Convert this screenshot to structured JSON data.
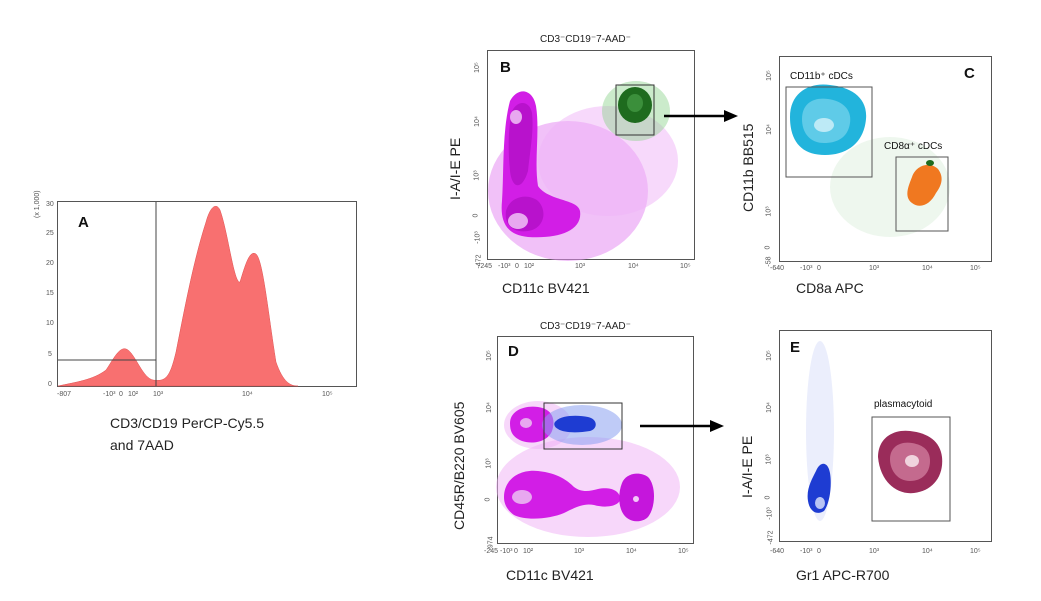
{
  "colors": {
    "histogram": "#f87070",
    "magenta": "#d21ee6",
    "dark_magenta": "#8a0aa0",
    "green": "#1e6b1e",
    "cyan": "#22b4dc",
    "orange": "#f07820",
    "blue": "#1e3cd2",
    "plum": "#9a2c5a"
  },
  "panels": [
    {
      "id": "A",
      "label": "A",
      "x_label_line1": "CD3/CD19 PerCP-Cy5.5",
      "x_label_line2": "and 7AAD",
      "y_scale": "(x 1,000)",
      "x_ticks": [
        "-807",
        "-10³",
        "0",
        "10²",
        "10³",
        "10⁴",
        "10⁵"
      ],
      "y_ticks": [
        "0",
        "5",
        "10",
        "15",
        "20",
        "25",
        "30"
      ]
    },
    {
      "id": "B",
      "label": "B",
      "title": "CD3⁻CD19⁻7-AAD⁻",
      "x_label": "CD11c BV421",
      "y_label": "I-A/I-E PE",
      "x_ticks": [
        "-245",
        "-10³",
        "0",
        "10²",
        "10³",
        "10⁴",
        "10⁵"
      ],
      "y_ticks": [
        "-472",
        "-10³",
        "0",
        "10³",
        "10⁴",
        "10⁵"
      ]
    },
    {
      "id": "C",
      "label": "C",
      "x_label": "CD8a APC",
      "y_label": "CD11b BB515",
      "x_ticks": [
        "-640",
        "-10³",
        "0",
        "10³",
        "10⁴",
        "10⁵"
      ],
      "y_ticks": [
        "-58",
        "0",
        "10³",
        "10⁴",
        "10⁵"
      ],
      "gate_1": "CD11b⁺ cDCs",
      "gate_2": "CD8α⁺ cDCs"
    },
    {
      "id": "D",
      "label": "D",
      "title": "CD3⁻CD19⁻7-AAD⁻",
      "x_label": "CD11c BV421",
      "y_label": "CD45R/B220 BV605",
      "x_ticks": [
        "-245",
        "-10³",
        "0",
        "10²",
        "10³",
        "10⁴",
        "10⁵"
      ],
      "y_ticks": [
        "-974",
        "0",
        "10³",
        "10⁴",
        "10⁵"
      ]
    },
    {
      "id": "E",
      "label": "E",
      "x_label": "Gr1 APC-R700",
      "y_label": "I-A/I-E PE",
      "x_ticks": [
        "-640",
        "-10³",
        "0",
        "10³",
        "10⁴",
        "10⁵"
      ],
      "y_ticks": [
        "-472",
        "-10³",
        "0",
        "10³",
        "10⁴",
        "10⁵"
      ],
      "gate_1": "plasmacytoid"
    }
  ],
  "chart_data": [
    {
      "type": "area",
      "panel": "A",
      "xlabel": "CD3/CD19 PerCP-Cy5.5 and 7AAD",
      "ylabel": "(x 1,000)",
      "xscale": "biexponential",
      "x": [
        -807,
        0,
        100,
        300,
        600,
        1000,
        1500,
        2000,
        2500,
        3500,
        5000,
        7000,
        9000,
        12000
      ],
      "y": [
        0,
        3.5,
        5.2,
        1.5,
        2.0,
        10.0,
        20.0,
        25.0,
        20.0,
        13.5,
        18.0,
        16.0,
        6.0,
        0
      ],
      "ylim": [
        0,
        30
      ]
    },
    {
      "type": "scatter",
      "panel": "B",
      "title": "CD3⁻CD19⁻7-AAD⁻",
      "xlabel": "CD11c BV421",
      "ylabel": "I-A/I-E PE",
      "populations": [
        "magenta contour",
        "green gated population"
      ]
    },
    {
      "type": "scatter",
      "panel": "C",
      "xlabel": "CD8a APC",
      "ylabel": "CD11b BB515",
      "gates": [
        "CD11b⁺ cDCs",
        "CD8α⁺ cDCs"
      ]
    },
    {
      "type": "scatter",
      "panel": "D",
      "title": "CD3⁻CD19⁻7-AAD⁻",
      "xlabel": "CD11c BV421",
      "ylabel": "CD45R/B220 BV605",
      "populations": [
        "magenta contour",
        "blue gated population"
      ]
    },
    {
      "type": "scatter",
      "panel": "E",
      "xlabel": "Gr1 APC-R700",
      "ylabel": "I-A/I-E PE",
      "gates": [
        "plasmacytoid"
      ]
    }
  ]
}
